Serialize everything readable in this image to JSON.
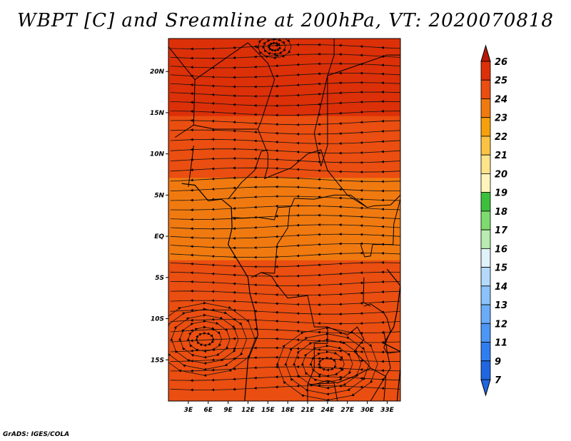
{
  "title": "WBPT [C] and Sreamline at 200hPa, VT: 2020070818",
  "credit": "GrADS: IGES/COLA",
  "map": {
    "lat_ticks": [
      "20N",
      "15N",
      "10N",
      "5N",
      "EQ",
      "5S",
      "10S",
      "15S"
    ],
    "lon_ticks": [
      "3E",
      "6E",
      "9E",
      "12E",
      "15E",
      "18E",
      "21E",
      "24E",
      "27E",
      "30E",
      "33E"
    ]
  },
  "colorbar": {
    "labels": [
      "7",
      "9",
      "11",
      "12",
      "13",
      "14",
      "15",
      "16",
      "17",
      "18",
      "19",
      "20",
      "21",
      "22",
      "23",
      "24",
      "25",
      "26"
    ],
    "colors": [
      "#1f66e0",
      "#2f7ef0",
      "#4c96f5",
      "#6aacf8",
      "#8cc2fa",
      "#b4d9fb",
      "#e0f2fa",
      "#b8ecb0",
      "#7edb6e",
      "#3cc03c",
      "#fff5bc",
      "#fde38a",
      "#fbc344",
      "#f6a00c",
      "#f07a10",
      "#ea4e10",
      "#dc3008",
      "#b81808"
    ]
  },
  "field": {
    "bands": [
      {
        "from_lat": 20.0,
        "to_lat": 24.0,
        "value": 25.5
      },
      {
        "from_lat": 14.5,
        "to_lat": 20.0,
        "value": 25.0
      },
      {
        "from_lat": 7.0,
        "to_lat": 14.5,
        "value": 24.0
      },
      {
        "from_lat": -3.0,
        "to_lat": 7.0,
        "value": 23.5
      },
      {
        "from_lat": -18.0,
        "to_lat": -3.0,
        "value": 24.0
      },
      {
        "from_lat": -20.0,
        "to_lat": -18.0,
        "value": 24.5
      }
    ],
    "vortices": [
      {
        "name": "anticyclone-south-atlantic",
        "lon": 5.5,
        "lat": -12.5
      },
      {
        "name": "cyclone-mozambique",
        "lon": 24.0,
        "lat": -15.5
      },
      {
        "name": "vortex-north",
        "lon": 16.0,
        "lat": 23.0
      }
    ]
  }
}
